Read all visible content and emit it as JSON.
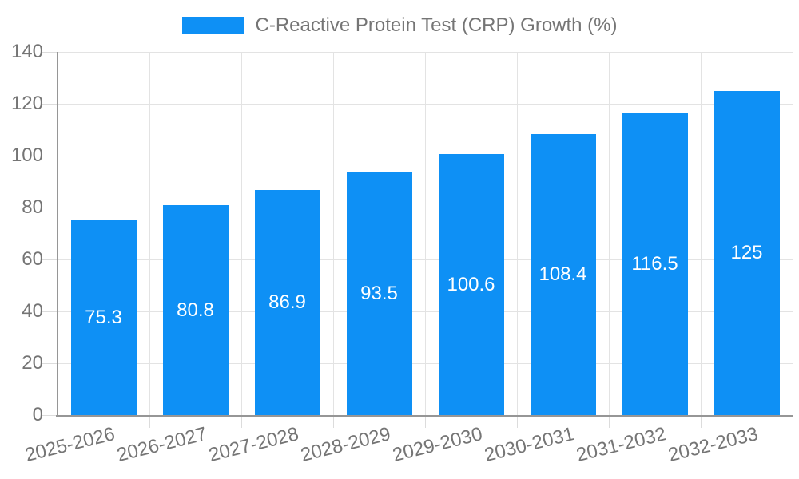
{
  "legend": {
    "label": "C-Reactive Protein Test (CRP) Growth (%)"
  },
  "chart_data": {
    "type": "bar",
    "title": "C-Reactive Protein Test (CRP) Growth (%)",
    "categories": [
      "2025-2026",
      "2026-2027",
      "2027-2028",
      "2028-2029",
      "2029-2030",
      "2030-2031",
      "2031-2032",
      "2032-2033"
    ],
    "values": [
      75.3,
      80.8,
      86.9,
      93.5,
      100.6,
      108.4,
      116.5,
      125
    ],
    "value_labels": [
      "75.3",
      "80.8",
      "86.9",
      "93.5",
      "100.6",
      "108.4",
      "116.5",
      "125"
    ],
    "xlabel": "",
    "ylabel": "",
    "ylim": [
      0,
      140
    ],
    "yticks": [
      0,
      20,
      40,
      60,
      80,
      100,
      120,
      140
    ],
    "grid": "both",
    "legend_position": "top",
    "bar_color": "#0E90F5",
    "bar_label_color": "#FFFFFF",
    "axis_text_color": "#757575",
    "grid_color": "#E3E3E3",
    "tick_color": "#DCDCDC",
    "axis_line_color": "#969696"
  }
}
